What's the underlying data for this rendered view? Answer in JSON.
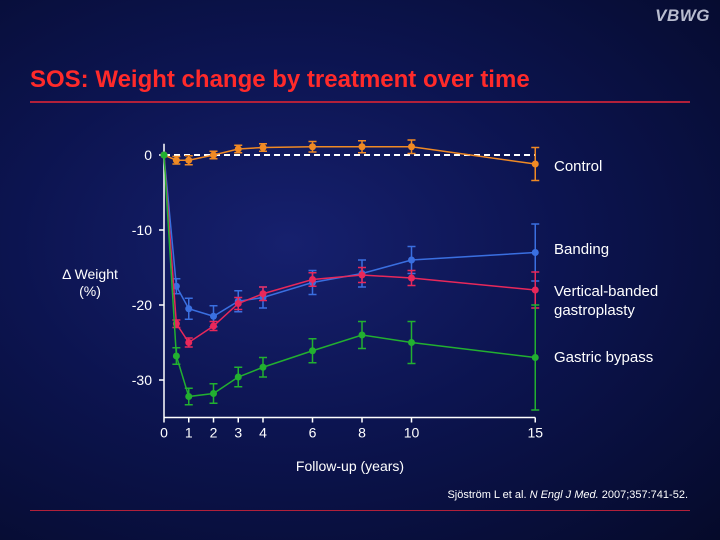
{
  "logo": "VBWG",
  "title": "SOS: Weight change by treatment over time",
  "ylabel_line1": "Δ Weight",
  "ylabel_line2": "(%)",
  "citation": {
    "authors": "Sjöström L et al.",
    "journal": "N Engl J Med.",
    "ref": "2007;357:741-52."
  },
  "chart_data": {
    "type": "line",
    "title": "SOS: Weight change by treatment over time",
    "xlabel": "Follow-up (years)",
    "ylabel": "Δ Weight (%)",
    "xlim": [
      0,
      15
    ],
    "ylim": [
      -35,
      1.5
    ],
    "x_ticks": [
      0,
      1,
      2,
      3,
      4,
      6,
      8,
      10,
      15
    ],
    "y_ticks": [
      0,
      -10,
      -20,
      -30
    ],
    "reference_line": 0,
    "series": [
      {
        "name": "Control",
        "color": "#f08a24",
        "x": [
          0,
          0.5,
          1,
          2,
          3,
          4,
          6,
          8,
          10,
          15
        ],
        "y": [
          0,
          -0.7,
          -0.7,
          0,
          0.8,
          1.0,
          1.1,
          1.1,
          1.1,
          -1.2
        ],
        "err": [
          0,
          0.5,
          0.6,
          0.5,
          0.5,
          0.5,
          0.7,
          0.8,
          0.9,
          2.2
        ]
      },
      {
        "name": "Banding",
        "color": "#3a6fe0",
        "x": [
          0,
          0.5,
          1,
          2,
          3,
          4,
          6,
          8,
          10,
          15
        ],
        "y": [
          0,
          -17.5,
          -20.5,
          -21.5,
          -19.5,
          -19.0,
          -17.0,
          -15.8,
          -14.0,
          -13.0
        ],
        "err": [
          0,
          1.0,
          1.4,
          1.4,
          1.4,
          1.4,
          1.6,
          1.8,
          1.8,
          3.8
        ]
      },
      {
        "name": "Vertical-banded gastroplasty",
        "color": "#e8285a",
        "x": [
          0,
          0.5,
          1,
          2,
          3,
          4,
          6,
          8,
          10,
          15
        ],
        "y": [
          0,
          -22.5,
          -25.0,
          -22.8,
          -19.8,
          -18.5,
          -16.6,
          -16.0,
          -16.4,
          -18.0
        ],
        "err": [
          0,
          0.5,
          0.6,
          0.6,
          0.8,
          0.9,
          0.9,
          1.0,
          1.0,
          2.4
        ]
      },
      {
        "name": "Gastric bypass",
        "color": "#22b030",
        "x": [
          0,
          0.5,
          1,
          2,
          3,
          4,
          6,
          8,
          10,
          15
        ],
        "y": [
          0,
          -26.8,
          -32.2,
          -31.8,
          -29.6,
          -28.3,
          -26.1,
          -24.0,
          -25.0,
          -27.0
        ],
        "err": [
          0,
          1.1,
          1.1,
          1.3,
          1.3,
          1.3,
          1.6,
          1.8,
          2.8,
          7.0
        ]
      }
    ]
  }
}
